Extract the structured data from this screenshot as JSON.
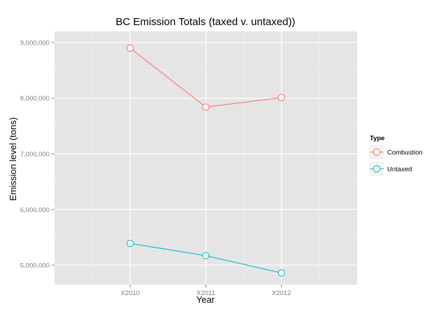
{
  "chart_data": {
    "type": "line",
    "title": "BC Emission Totals (taxed v. untaxed))",
    "xlabel": "Year",
    "ylabel": "Emission level (tons)",
    "categories": [
      "X2010",
      "X2011",
      "X2012"
    ],
    "ylim": [
      4650000,
      9200000
    ],
    "yticks": [
      5000000,
      6000000,
      7000000,
      8000000,
      9000000
    ],
    "ytick_labels": [
      "5,000,000",
      "6,000,000",
      "7,000,000",
      "8,000,000",
      "9,000,000"
    ],
    "grid": true,
    "legend": {
      "title": "Type",
      "position": "right"
    },
    "series": [
      {
        "name": "Combustion",
        "color": "#F8766D",
        "values": [
          8900000,
          7840000,
          8010000
        ]
      },
      {
        "name": "Untaxed",
        "color": "#00BFC4",
        "values": [
          5390000,
          5170000,
          4860000
        ]
      }
    ]
  },
  "style": {
    "panel_bg": "#E5E5E5",
    "grid_major": "#FFFFFF",
    "grid_minor": "#F2F2F2",
    "axis_text": "#7F7F7F",
    "legend_key_bg": "#F2F2F2"
  }
}
